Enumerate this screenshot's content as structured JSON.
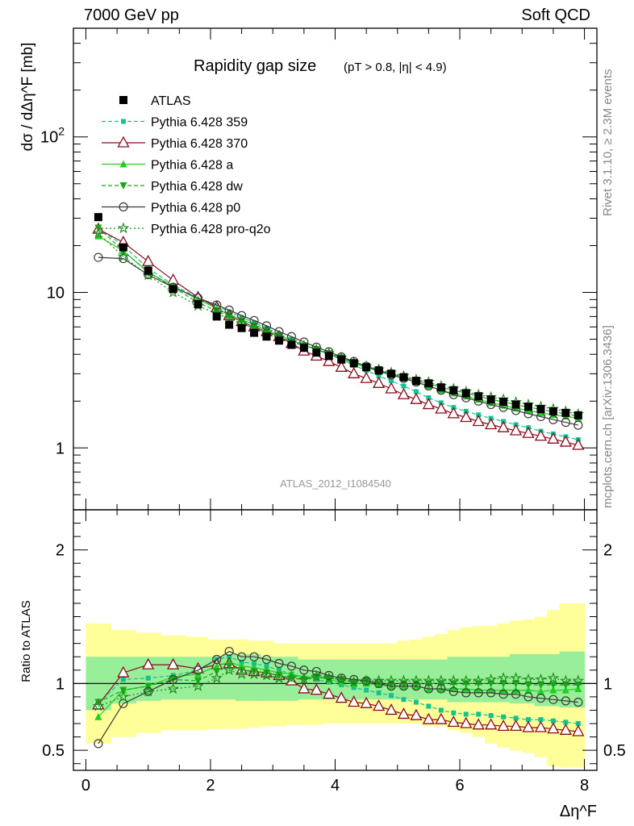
{
  "header": {
    "left": "7000 GeV pp",
    "right": "Soft QCD",
    "side_top": "Rivet 3.1.10, ≥ 2.3M events",
    "side_bottom": "mcplots.cern.ch [arXiv:1306.3436]"
  },
  "chart_data": {
    "type": "scatter",
    "title": "Rapidity gap size",
    "subtitle": "(pT > 0.8, |η| < 4.9)",
    "analysis_label": "ATLAS_2012_I1084540",
    "ylabel_top": "dσ / dΔη^F [mb]",
    "ylabel_bottom": "Ratio to ATLAS",
    "xlabel": "Δη^F",
    "xlim": [
      -0.2,
      8.2
    ],
    "ylim_top": [
      0.4,
      500
    ],
    "ylim_bottom": [
      0.35,
      2.3
    ],
    "yscale_top": "log",
    "x_ticks": [
      "0",
      "2",
      "4",
      "6",
      "8"
    ],
    "y_ticks_top": [
      "1",
      "10",
      "10^2"
    ],
    "y_ticks_bottom": [
      "0.5",
      "1",
      "2"
    ],
    "legend_position": "top-left",
    "x": [
      0.2,
      0.6,
      1.0,
      1.4,
      1.8,
      2.1,
      2.3,
      2.5,
      2.7,
      2.9,
      3.1,
      3.3,
      3.5,
      3.7,
      3.9,
      4.1,
      4.3,
      4.5,
      4.7,
      4.9,
      5.1,
      5.3,
      5.5,
      5.7,
      5.9,
      6.1,
      6.3,
      6.5,
      6.7,
      6.9,
      7.1,
      7.3,
      7.5,
      7.7,
      7.9
    ],
    "atlas": {
      "name": "ATLAS",
      "values": [
        30.5,
        19.5,
        13.8,
        10.5,
        8.4,
        7.0,
        6.2,
        5.9,
        5.5,
        5.2,
        4.9,
        4.6,
        4.4,
        4.1,
        3.9,
        3.7,
        3.5,
        3.3,
        3.15,
        3.0,
        2.85,
        2.7,
        2.6,
        2.45,
        2.35,
        2.25,
        2.15,
        2.05,
        1.98,
        1.9,
        1.84,
        1.78,
        1.72,
        1.68,
        1.62
      ],
      "band_green": [
        [
          0.8,
          1.2
        ],
        [
          0.85,
          1.2
        ],
        [
          0.87,
          1.2
        ],
        [
          0.88,
          1.2
        ],
        [
          0.88,
          1.2
        ],
        [
          0.88,
          1.2
        ],
        [
          0.88,
          1.22
        ],
        [
          0.87,
          1.22
        ],
        [
          0.87,
          1.22
        ],
        [
          0.87,
          1.2
        ],
        [
          0.87,
          1.2
        ],
        [
          0.87,
          1.2
        ],
        [
          0.88,
          1.18
        ],
        [
          0.88,
          1.18
        ],
        [
          0.88,
          1.18
        ],
        [
          0.88,
          1.18
        ],
        [
          0.88,
          1.18
        ],
        [
          0.88,
          1.18
        ],
        [
          0.88,
          1.18
        ],
        [
          0.88,
          1.18
        ],
        [
          0.88,
          1.18
        ],
        [
          0.88,
          1.18
        ],
        [
          0.88,
          1.18
        ],
        [
          0.88,
          1.18
        ],
        [
          0.86,
          1.2
        ],
        [
          0.86,
          1.2
        ],
        [
          0.86,
          1.2
        ],
        [
          0.86,
          1.2
        ],
        [
          0.86,
          1.2
        ],
        [
          0.85,
          1.22
        ],
        [
          0.85,
          1.22
        ],
        [
          0.83,
          1.22
        ],
        [
          0.83,
          1.22
        ],
        [
          0.82,
          1.24
        ],
        [
          0.82,
          1.24
        ]
      ],
      "band_yellow": [
        [
          0.55,
          1.45
        ],
        [
          0.6,
          1.4
        ],
        [
          0.63,
          1.38
        ],
        [
          0.65,
          1.36
        ],
        [
          0.65,
          1.35
        ],
        [
          0.66,
          1.33
        ],
        [
          0.66,
          1.33
        ],
        [
          0.66,
          1.33
        ],
        [
          0.67,
          1.32
        ],
        [
          0.68,
          1.32
        ],
        [
          0.68,
          1.3
        ],
        [
          0.69,
          1.3
        ],
        [
          0.69,
          1.3
        ],
        [
          0.69,
          1.3
        ],
        [
          0.7,
          1.3
        ],
        [
          0.7,
          1.3
        ],
        [
          0.7,
          1.3
        ],
        [
          0.7,
          1.3
        ],
        [
          0.7,
          1.3
        ],
        [
          0.7,
          1.3
        ],
        [
          0.7,
          1.32
        ],
        [
          0.7,
          1.33
        ],
        [
          0.68,
          1.35
        ],
        [
          0.68,
          1.37
        ],
        [
          0.65,
          1.4
        ],
        [
          0.63,
          1.42
        ],
        [
          0.6,
          1.43
        ],
        [
          0.55,
          1.43
        ],
        [
          0.52,
          1.45
        ],
        [
          0.5,
          1.47
        ],
        [
          0.48,
          1.48
        ],
        [
          0.45,
          1.5
        ],
        [
          0.38,
          1.55
        ],
        [
          0.37,
          1.6
        ],
        [
          0.37,
          1.6
        ]
      ]
    },
    "series": [
      {
        "name": "Pythia 6.428 359",
        "color": "#13c28e",
        "values": [
          26.0,
          20.0,
          14.3,
          11.2,
          9.2,
          8.2,
          7.5,
          6.9,
          6.4,
          5.9,
          5.4,
          5.0,
          4.6,
          4.3,
          4.0,
          3.7,
          3.4,
          3.15,
          2.9,
          2.7,
          2.5,
          2.3,
          2.1,
          1.95,
          1.82,
          1.72,
          1.63,
          1.55,
          1.48,
          1.41,
          1.35,
          1.28,
          1.23,
          1.18,
          1.13
        ],
        "ratio": [
          0.85,
          1.03,
          1.04,
          1.06,
          1.1,
          1.18,
          1.2,
          1.16,
          1.15,
          1.13,
          1.1,
          1.07,
          1.04,
          1.03,
          1.01,
          0.99,
          0.97,
          0.95,
          0.93,
          0.91,
          0.88,
          0.86,
          0.83,
          0.8,
          0.78,
          0.77,
          0.77,
          0.76,
          0.75,
          0.74,
          0.73,
          0.73,
          0.72,
          0.71,
          0.7
        ]
      },
      {
        "name": "Pythia 6.428 370",
        "color": "#8b0a1e",
        "values": [
          25.5,
          21.0,
          15.8,
          12.0,
          9.3,
          8.0,
          7.1,
          6.5,
          6.0,
          5.6,
          5.2,
          4.7,
          4.2,
          3.9,
          3.6,
          3.3,
          3.0,
          2.8,
          2.6,
          2.4,
          2.2,
          2.05,
          1.9,
          1.78,
          1.66,
          1.57,
          1.48,
          1.41,
          1.35,
          1.29,
          1.24,
          1.19,
          1.14,
          1.09,
          1.04
        ],
        "ratio": [
          0.84,
          1.08,
          1.14,
          1.14,
          1.11,
          1.14,
          1.15,
          1.1,
          1.09,
          1.08,
          1.06,
          1.02,
          0.96,
          0.95,
          0.92,
          0.89,
          0.86,
          0.85,
          0.83,
          0.8,
          0.77,
          0.76,
          0.73,
          0.73,
          0.71,
          0.7,
          0.69,
          0.69,
          0.68,
          0.68,
          0.67,
          0.67,
          0.66,
          0.65,
          0.64
        ]
      },
      {
        "name": "Pythia 6.428 a",
        "color": "#20d020",
        "values": [
          23.0,
          18.5,
          13.5,
          11.0,
          9.0,
          7.9,
          7.2,
          6.7,
          6.2,
          5.7,
          5.3,
          4.9,
          4.6,
          4.3,
          4.0,
          3.75,
          3.5,
          3.3,
          3.1,
          2.95,
          2.8,
          2.65,
          2.5,
          2.35,
          2.25,
          2.15,
          2.05,
          1.95,
          1.88,
          1.8,
          1.74,
          1.68,
          1.63,
          1.6,
          1.55
        ],
        "ratio": [
          0.75,
          0.95,
          0.98,
          1.05,
          1.07,
          1.13,
          1.16,
          1.13,
          1.12,
          1.1,
          1.08,
          1.07,
          1.05,
          1.05,
          1.03,
          1.01,
          1.0,
          1.0,
          0.99,
          0.98,
          0.98,
          0.98,
          0.96,
          0.96,
          0.96,
          0.96,
          0.95,
          0.95,
          0.95,
          0.95,
          0.95,
          0.94,
          0.95,
          0.95,
          0.96
        ]
      },
      {
        "name": "Pythia 6.428 dw",
        "color": "#1aa81a",
        "values": [
          26.0,
          18.5,
          13.5,
          10.8,
          8.6,
          7.6,
          7.0,
          6.5,
          6.0,
          5.6,
          5.2,
          4.8,
          4.55,
          4.3,
          4.05,
          3.8,
          3.55,
          3.35,
          3.15,
          3.0,
          2.85,
          2.7,
          2.6,
          2.45,
          2.35,
          2.25,
          2.15,
          2.05,
          1.98,
          1.9,
          1.83,
          1.77,
          1.71,
          1.66,
          1.6
        ],
        "ratio": [
          0.86,
          0.95,
          0.98,
          1.03,
          1.02,
          1.09,
          1.13,
          1.1,
          1.09,
          1.08,
          1.06,
          1.04,
          1.03,
          1.05,
          1.04,
          1.03,
          1.01,
          1.02,
          1.0,
          1.0,
          1.0,
          1.0,
          1.0,
          1.0,
          1.0,
          1.0,
          1.0,
          1.0,
          1.0,
          1.0,
          0.99,
          0.99,
          0.99,
          0.99,
          0.99
        ]
      },
      {
        "name": "Pythia 6.428 p0",
        "color": "#3a3a3a",
        "values": [
          16.8,
          16.5,
          13.0,
          10.8,
          9.2,
          8.3,
          7.7,
          7.1,
          6.6,
          6.1,
          5.6,
          5.2,
          4.8,
          4.45,
          4.15,
          3.85,
          3.6,
          3.35,
          3.15,
          2.95,
          2.8,
          2.65,
          2.5,
          2.35,
          2.2,
          2.1,
          2.0,
          1.9,
          1.82,
          1.74,
          1.66,
          1.59,
          1.52,
          1.46,
          1.4
        ],
        "ratio": [
          0.55,
          0.85,
          0.94,
          1.03,
          1.1,
          1.18,
          1.24,
          1.2,
          1.2,
          1.18,
          1.15,
          1.13,
          1.1,
          1.09,
          1.06,
          1.04,
          1.03,
          1.02,
          1.0,
          0.98,
          0.98,
          0.98,
          0.96,
          0.96,
          0.94,
          0.93,
          0.93,
          0.93,
          0.92,
          0.92,
          0.9,
          0.89,
          0.88,
          0.87,
          0.86
        ]
      },
      {
        "name": "Pythia 6.428 pro-q2o",
        "color": "#1a8a1a",
        "values": [
          24.0,
          17.0,
          12.9,
          10.0,
          8.2,
          7.3,
          6.8,
          6.3,
          5.9,
          5.5,
          5.1,
          4.8,
          4.55,
          4.3,
          4.05,
          3.8,
          3.55,
          3.35,
          3.2,
          3.05,
          2.9,
          2.75,
          2.65,
          2.5,
          2.4,
          2.3,
          2.2,
          2.12,
          2.05,
          1.97,
          1.9,
          1.84,
          1.78,
          1.72,
          1.65
        ],
        "ratio": [
          0.83,
          0.9,
          0.94,
          0.96,
          0.98,
          1.04,
          1.1,
          1.07,
          1.07,
          1.06,
          1.04,
          1.04,
          1.03,
          1.05,
          1.04,
          1.03,
          1.01,
          1.02,
          1.02,
          1.02,
          1.02,
          1.02,
          1.02,
          1.02,
          1.02,
          1.02,
          1.02,
          1.03,
          1.04,
          1.04,
          1.03,
          1.03,
          1.04,
          1.02,
          1.02
        ]
      }
    ]
  }
}
